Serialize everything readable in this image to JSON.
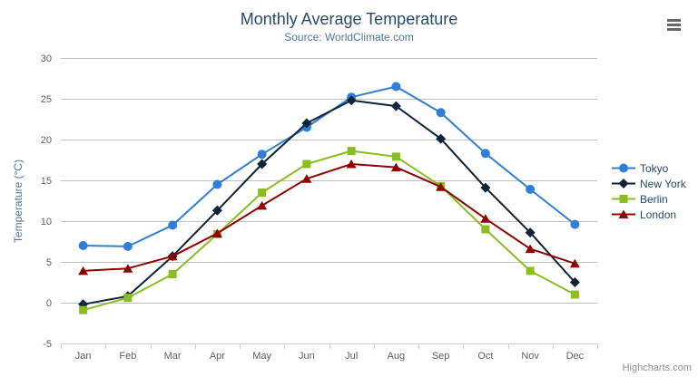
{
  "chart_data": {
    "type": "line",
    "title": "Monthly Average Temperature",
    "subtitle": "Source: WorldClimate.com",
    "categories": [
      "Jan",
      "Feb",
      "Mar",
      "Apr",
      "May",
      "Jun",
      "Jul",
      "Aug",
      "Sep",
      "Oct",
      "Nov",
      "Dec"
    ],
    "xlabel": "",
    "ylabel": "Temperature (°C)",
    "ylim": [
      -5,
      30
    ],
    "ytick_interval": 5,
    "yticks": [
      -5,
      0,
      5,
      10,
      15,
      20,
      25,
      30
    ],
    "grid": true,
    "legend_position": "right",
    "series": [
      {
        "name": "Tokyo",
        "color": "#2f7ed8",
        "marker": "circle",
        "values": [
          7.0,
          6.9,
          9.5,
          14.5,
          18.2,
          21.5,
          25.2,
          26.5,
          23.3,
          18.3,
          13.9,
          9.6
        ]
      },
      {
        "name": "New York",
        "color": "#0d233a",
        "marker": "diamond",
        "values": [
          -0.2,
          0.8,
          5.7,
          11.3,
          17.0,
          22.0,
          24.8,
          24.1,
          20.1,
          14.1,
          8.6,
          2.5
        ]
      },
      {
        "name": "Berlin",
        "color": "#8bbc21",
        "marker": "square",
        "values": [
          -0.9,
          0.6,
          3.5,
          8.4,
          13.5,
          17.0,
          18.6,
          17.9,
          14.3,
          9.0,
          3.9,
          1.0
        ]
      },
      {
        "name": "London",
        "color": "#910000",
        "marker": "triangle",
        "values": [
          3.9,
          4.2,
          5.7,
          8.5,
          11.9,
          15.2,
          17.0,
          16.6,
          14.2,
          10.3,
          6.6,
          4.8
        ]
      }
    ]
  },
  "icons": {
    "menu": "hamburger-menu"
  },
  "credits": {
    "label": "Highcharts.com"
  },
  "style": {
    "grid_color": "#C0C0C0",
    "axis_line_color": "#C0D0E0",
    "title_color": "#274b6d",
    "subtitle_color": "#4d759e",
    "axis_label_color": "#606060",
    "legend_text_color": "#274b6d"
  }
}
